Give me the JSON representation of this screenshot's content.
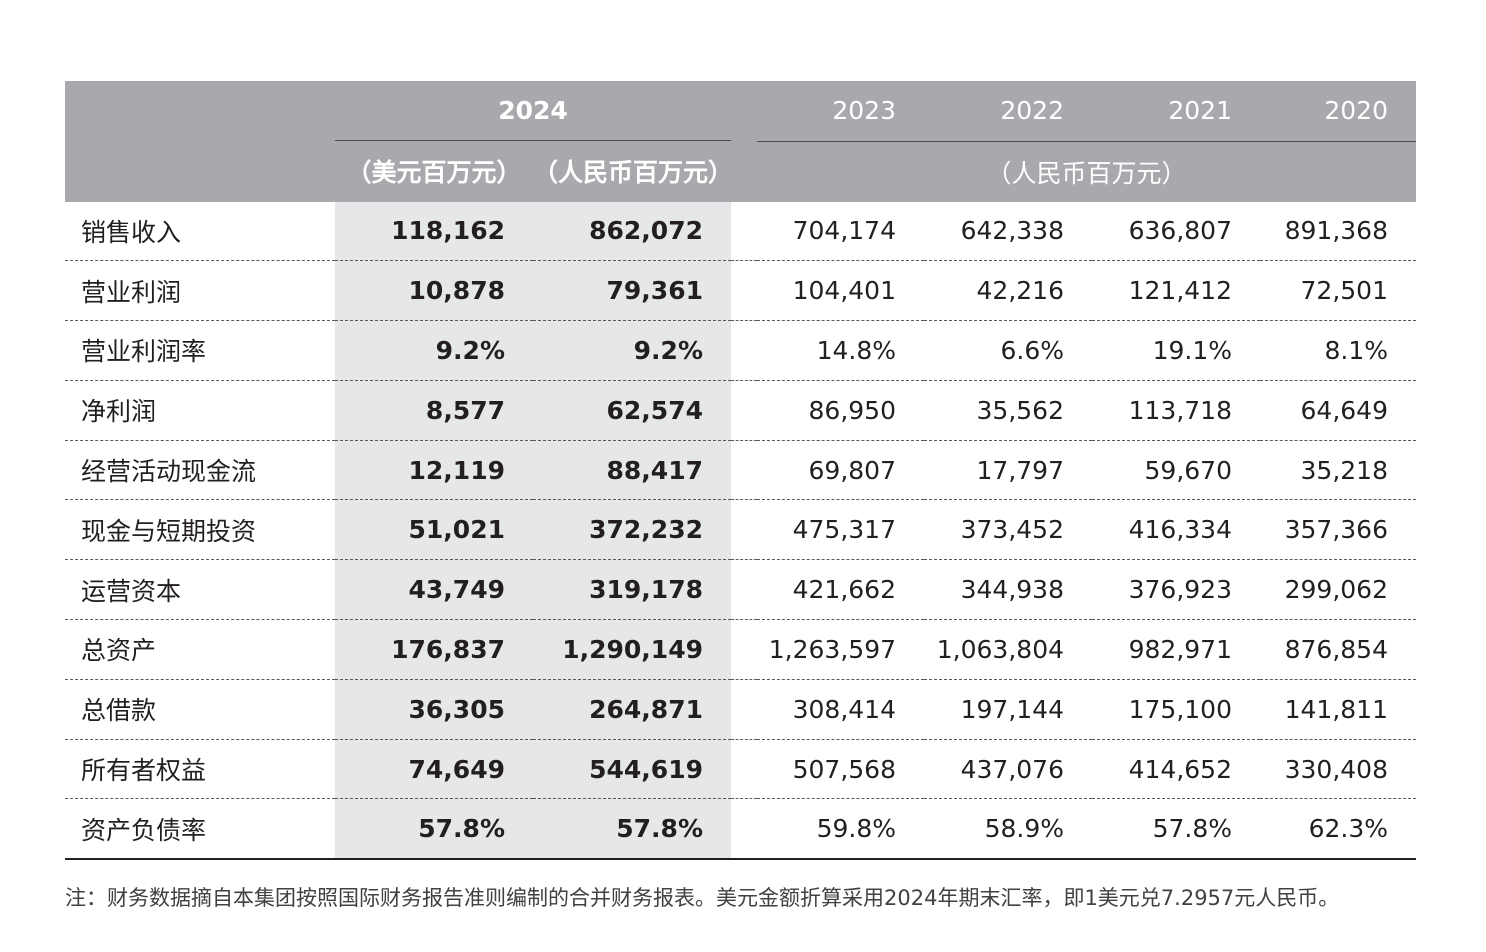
{
  "header": {
    "year_2024": "2024",
    "unit_usd": "（美元百万元）",
    "unit_rmb": "（人民币百万元）",
    "years_hist": [
      "2023",
      "2022",
      "2021",
      "2020"
    ],
    "unit_hist": "（人民币百万元）"
  },
  "rows": [
    {
      "label": "销售收入",
      "usd_2024": "118,162",
      "rmb_2024": "862,072",
      "y2023": "704,174",
      "y2022": "642,338",
      "y2021": "636,807",
      "y2020": "891,368"
    },
    {
      "label": "营业利润",
      "usd_2024": "10,878",
      "rmb_2024": "79,361",
      "y2023": "104,401",
      "y2022": "42,216",
      "y2021": "121,412",
      "y2020": "72,501"
    },
    {
      "label": "营业利润率",
      "usd_2024": "9.2%",
      "rmb_2024": "9.2%",
      "y2023": "14.8%",
      "y2022": "6.6%",
      "y2021": "19.1%",
      "y2020": "8.1%"
    },
    {
      "label": "净利润",
      "usd_2024": "8,577",
      "rmb_2024": "62,574",
      "y2023": "86,950",
      "y2022": "35,562",
      "y2021": "113,718",
      "y2020": "64,649"
    },
    {
      "label": "经营活动现金流",
      "usd_2024": "12,119",
      "rmb_2024": "88,417",
      "y2023": "69,807",
      "y2022": "17,797",
      "y2021": "59,670",
      "y2020": "35,218"
    },
    {
      "label": "现金与短期投资",
      "usd_2024": "51,021",
      "rmb_2024": "372,232",
      "y2023": "475,317",
      "y2022": "373,452",
      "y2021": "416,334",
      "y2020": "357,366"
    },
    {
      "label": "运营资本",
      "usd_2024": "43,749",
      "rmb_2024": "319,178",
      "y2023": "421,662",
      "y2022": "344,938",
      "y2021": "376,923",
      "y2020": "299,062"
    },
    {
      "label": "总资产",
      "usd_2024": "176,837",
      "rmb_2024": "1,290,149",
      "y2023": "1,263,597",
      "y2022": "1,063,804",
      "y2021": "982,971",
      "y2020": "876,854"
    },
    {
      "label": "总借款",
      "usd_2024": "36,305",
      "rmb_2024": "264,871",
      "y2023": "308,414",
      "y2022": "197,144",
      "y2021": "175,100",
      "y2020": "141,811"
    },
    {
      "label": "所有者权益",
      "usd_2024": "74,649",
      "rmb_2024": "544,619",
      "y2023": "507,568",
      "y2022": "437,076",
      "y2021": "414,652",
      "y2020": "330,408"
    },
    {
      "label": "资产负债率",
      "usd_2024": "57.8%",
      "rmb_2024": "57.8%",
      "y2023": "59.8%",
      "y2022": "58.9%",
      "y2021": "57.8%",
      "y2020": "62.3%"
    }
  ],
  "note": "注：财务数据摘自本集团按照国际财务报告准则编制的合并财务报表。美元金额折算采用2024年期末汇率，即1美元兑7.2957元人民币。"
}
